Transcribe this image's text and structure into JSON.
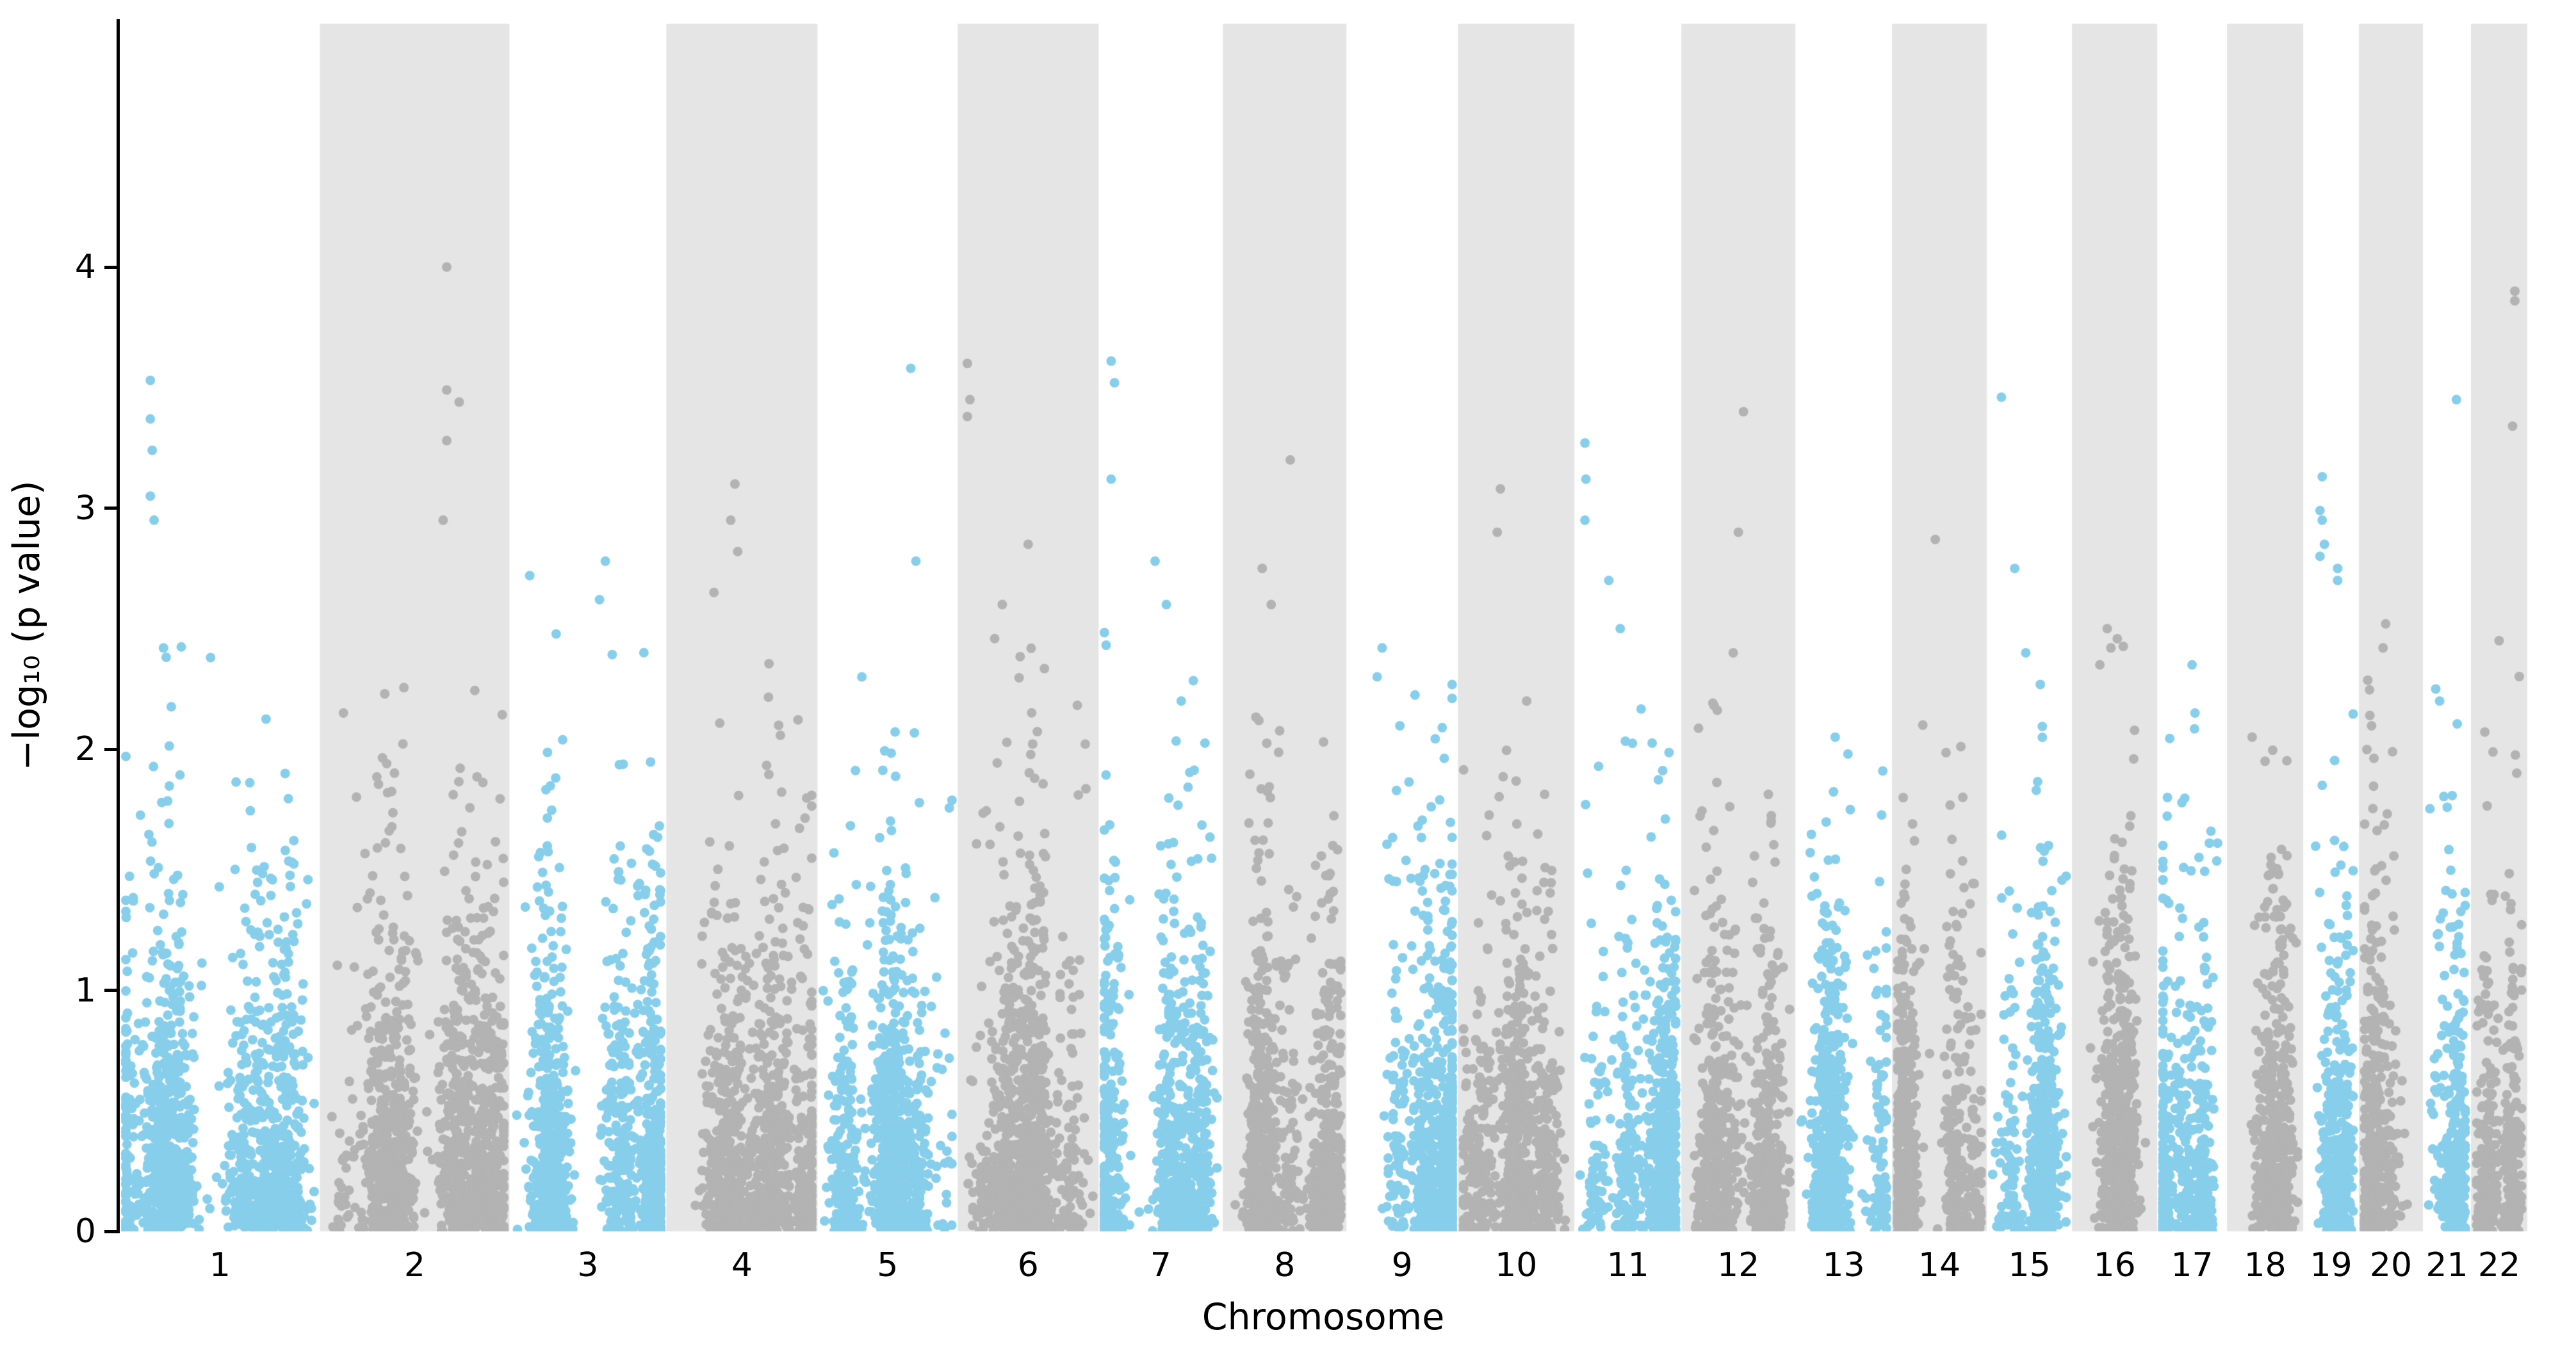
{
  "chart_data": {
    "type": "scatter",
    "subtype": "manhattan-plot",
    "title": "",
    "xlabel": "Chromosome",
    "ylabel": "−log₁₀ (p value)",
    "ylim": [
      0,
      5.01
    ],
    "yticks": [
      0,
      1,
      2,
      3,
      4
    ],
    "ytick_labels": [
      "0",
      "1",
      "2",
      "3",
      "4"
    ],
    "grid": false,
    "legend": null,
    "background_color": "#ffffff",
    "band_color": "#e5e5e5",
    "odd_chromosome_point_color": "#87ceeb",
    "even_chromosome_point_color": "#b3b3b3",
    "axis_color": "#000000",
    "chromosomes": {
      "labels": [
        "1",
        "2",
        "3",
        "4",
        "5",
        "6",
        "7",
        "8",
        "9",
        "10",
        "11",
        "12",
        "13",
        "14",
        "15",
        "16",
        "17",
        "18",
        "19",
        "20",
        "21",
        "22"
      ],
      "relative_widths": [
        312,
        296,
        245,
        236,
        219,
        220,
        194,
        193,
        174,
        182,
        167,
        178,
        151,
        148,
        133,
        133,
        109,
        119,
        87,
        100,
        75,
        88
      ],
      "shaded_bands": [
        "2",
        "4",
        "6",
        "8",
        "10",
        "12",
        "14",
        "16",
        "18",
        "20",
        "22"
      ],
      "bulk_value_cap": [
        2.5,
        2.3,
        2.55,
        2.55,
        2.15,
        2.5,
        2.55,
        2.25,
        2.42,
        2.05,
        2.5,
        2.35,
        2.0,
        2.05,
        2.3,
        2.5,
        2.38,
        2.0,
        2.65,
        2.5,
        2.3,
        2.45
      ]
    },
    "point_cloud_model": {
      "description": "p values uniform(0,1); y = -log10(p), truncated at per-chromosome bulk cap; x clustered in vertical streaks within each chromosome block",
      "points_per_unit_width": 4.2,
      "seed": 42
    },
    "notable_points": [
      {
        "chr": "1",
        "frac": 0.13,
        "v": 3.53
      },
      {
        "chr": "1",
        "frac": 0.13,
        "v": 3.37
      },
      {
        "chr": "1",
        "frac": 0.14,
        "v": 3.24
      },
      {
        "chr": "1",
        "frac": 0.13,
        "v": 3.05
      },
      {
        "chr": "1",
        "frac": 0.15,
        "v": 2.95
      },
      {
        "chr": "1",
        "frac": 0.2,
        "v": 2.42
      },
      {
        "chr": "1",
        "frac": 0.45,
        "v": 2.38
      },
      {
        "chr": "2",
        "frac": 0.68,
        "v": 4.0
      },
      {
        "chr": "2",
        "frac": 0.68,
        "v": 3.49
      },
      {
        "chr": "2",
        "frac": 0.75,
        "v": 3.44
      },
      {
        "chr": "2",
        "frac": 0.68,
        "v": 3.28
      },
      {
        "chr": "2",
        "frac": 0.66,
        "v": 2.95
      },
      {
        "chr": "2",
        "frac": 0.1,
        "v": 2.15
      },
      {
        "chr": "3",
        "frac": 0.62,
        "v": 2.78
      },
      {
        "chr": "3",
        "frac": 0.1,
        "v": 2.72
      },
      {
        "chr": "3",
        "frac": 0.58,
        "v": 2.62
      },
      {
        "chr": "4",
        "frac": 0.45,
        "v": 3.1
      },
      {
        "chr": "4",
        "frac": 0.42,
        "v": 2.95
      },
      {
        "chr": "4",
        "frac": 0.47,
        "v": 2.82
      },
      {
        "chr": "4",
        "frac": 0.3,
        "v": 2.65
      },
      {
        "chr": "5",
        "frac": 0.68,
        "v": 3.58
      },
      {
        "chr": "5",
        "frac": 0.72,
        "v": 2.78
      },
      {
        "chr": "5",
        "frac": 0.3,
        "v": 2.3
      },
      {
        "chr": "6",
        "frac": 0.03,
        "v": 3.6
      },
      {
        "chr": "6",
        "frac": 0.05,
        "v": 3.45
      },
      {
        "chr": "6",
        "frac": 0.03,
        "v": 3.38
      },
      {
        "chr": "6",
        "frac": 0.5,
        "v": 2.85
      },
      {
        "chr": "6",
        "frac": 0.3,
        "v": 2.6
      },
      {
        "chr": "7",
        "frac": 0.06,
        "v": 3.61
      },
      {
        "chr": "7",
        "frac": 0.09,
        "v": 3.52
      },
      {
        "chr": "7",
        "frac": 0.06,
        "v": 3.12
      },
      {
        "chr": "7",
        "frac": 0.45,
        "v": 2.78
      },
      {
        "chr": "7",
        "frac": 0.55,
        "v": 2.6
      },
      {
        "chr": "8",
        "frac": 0.55,
        "v": 3.2
      },
      {
        "chr": "8",
        "frac": 0.3,
        "v": 2.75
      },
      {
        "chr": "8",
        "frac": 0.38,
        "v": 2.6
      },
      {
        "chr": "9",
        "frac": 0.3,
        "v": 2.42
      },
      {
        "chr": "9",
        "frac": 0.25,
        "v": 2.3
      },
      {
        "chr": "10",
        "frac": 0.35,
        "v": 3.08
      },
      {
        "chr": "10",
        "frac": 0.32,
        "v": 2.9
      },
      {
        "chr": "10",
        "frac": 0.6,
        "v": 2.2
      },
      {
        "chr": "11",
        "frac": 0.05,
        "v": 3.27
      },
      {
        "chr": "11",
        "frac": 0.06,
        "v": 3.12
      },
      {
        "chr": "11",
        "frac": 0.05,
        "v": 2.95
      },
      {
        "chr": "11",
        "frac": 0.3,
        "v": 2.7
      },
      {
        "chr": "11",
        "frac": 0.42,
        "v": 2.5
      },
      {
        "chr": "12",
        "frac": 0.55,
        "v": 3.4
      },
      {
        "chr": "12",
        "frac": 0.5,
        "v": 2.9
      },
      {
        "chr": "12",
        "frac": 0.45,
        "v": 2.4
      },
      {
        "chr": "13",
        "frac": 0.4,
        "v": 2.05
      },
      {
        "chr": "13",
        "frac": 0.55,
        "v": 1.98
      },
      {
        "chr": "14",
        "frac": 0.45,
        "v": 2.87
      },
      {
        "chr": "14",
        "frac": 0.3,
        "v": 2.1
      },
      {
        "chr": "15",
        "frac": 0.12,
        "v": 3.46
      },
      {
        "chr": "15",
        "frac": 0.3,
        "v": 2.75
      },
      {
        "chr": "15",
        "frac": 0.45,
        "v": 2.4
      },
      {
        "chr": "16",
        "frac": 0.4,
        "v": 2.5
      },
      {
        "chr": "16",
        "frac": 0.45,
        "v": 2.42
      },
      {
        "chr": "16",
        "frac": 0.3,
        "v": 2.35
      },
      {
        "chr": "17",
        "frac": 0.5,
        "v": 2.35
      },
      {
        "chr": "17",
        "frac": 0.55,
        "v": 2.15
      },
      {
        "chr": "18",
        "frac": 0.3,
        "v": 2.05
      },
      {
        "chr": "18",
        "frac": 0.5,
        "v": 1.95
      },
      {
        "chr": "19",
        "frac": 0.3,
        "v": 3.13
      },
      {
        "chr": "19",
        "frac": 0.25,
        "v": 2.99
      },
      {
        "chr": "19",
        "frac": 0.3,
        "v": 2.95
      },
      {
        "chr": "19",
        "frac": 0.35,
        "v": 2.85
      },
      {
        "chr": "19",
        "frac": 0.25,
        "v": 2.8
      },
      {
        "chr": "19",
        "frac": 0.65,
        "v": 2.75
      },
      {
        "chr": "19",
        "frac": 0.65,
        "v": 2.7
      },
      {
        "chr": "20",
        "frac": 0.4,
        "v": 2.52
      },
      {
        "chr": "20",
        "frac": 0.35,
        "v": 2.42
      },
      {
        "chr": "21",
        "frac": 0.76,
        "v": 3.45
      },
      {
        "chr": "21",
        "frac": 0.3,
        "v": 2.2
      },
      {
        "chr": "22",
        "frac": 0.85,
        "v": 3.9
      },
      {
        "chr": "22",
        "frac": 0.85,
        "v": 3.86
      },
      {
        "chr": "22",
        "frac": 0.8,
        "v": 3.34
      },
      {
        "chr": "22",
        "frac": 0.5,
        "v": 2.45
      }
    ]
  }
}
